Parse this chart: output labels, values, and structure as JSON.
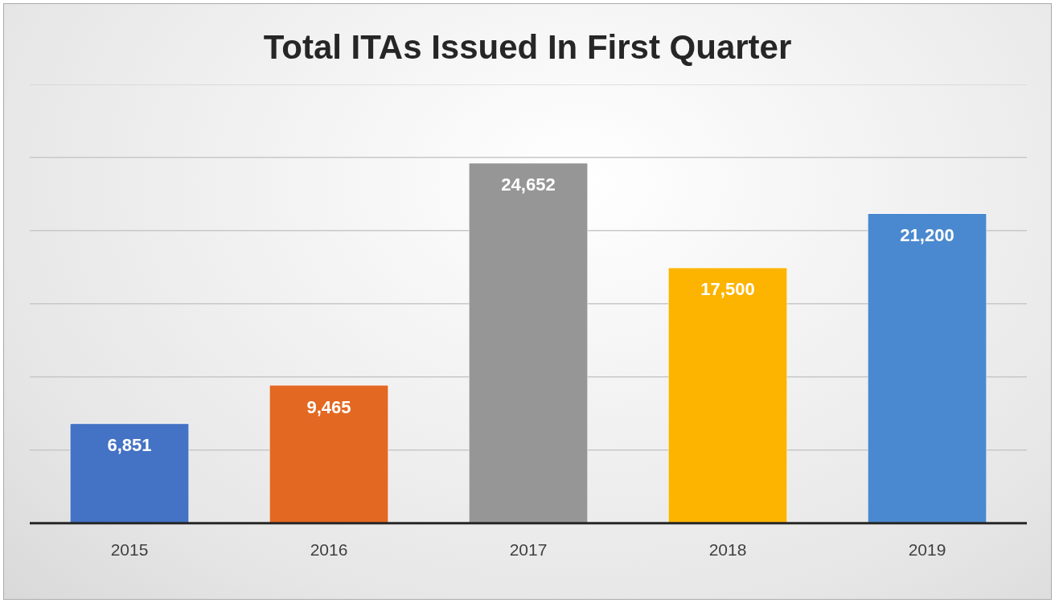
{
  "chart_data": {
    "type": "bar",
    "title": "Total ITAs Issued In First Quarter",
    "categories": [
      "2015",
      "2016",
      "2017",
      "2018",
      "2019"
    ],
    "values": [
      6851,
      9465,
      24652,
      17500,
      21200
    ],
    "value_labels": [
      "6,851",
      "9,465",
      "24,652",
      "17,500",
      "21,200"
    ],
    "colors": [
      "#4472c4",
      "#e36822",
      "#969696",
      "#fcb400",
      "#4a89cf"
    ],
    "tick_labels": "x",
    "grid": "y",
    "legend": false
  }
}
